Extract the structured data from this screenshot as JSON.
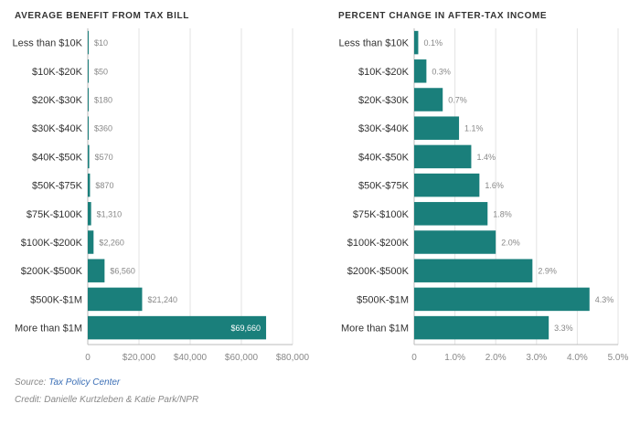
{
  "colors": {
    "bar": "#1a7f7b",
    "grid": "#e3e3e3",
    "axis": "#bbbbbb",
    "text": "#333333",
    "value_label": "#888888",
    "inside_label": "#ffffff",
    "link": "#3b6fb6"
  },
  "footer": {
    "source_prefix": "Source:",
    "source_link": "Tax Policy Center",
    "credit": "Credit: Danielle Kurtzleben & Katie Park/NPR"
  },
  "chart_data": [
    {
      "type": "bar",
      "orientation": "horizontal",
      "title": "AVERAGE BENEFIT FROM TAX BILL",
      "categories": [
        "Less than $10K",
        "$10K-$20K",
        "$20K-$30K",
        "$30K-$40K",
        "$40K-$50K",
        "$50K-$75K",
        "$75K-$100K",
        "$100K-$200K",
        "$200K-$500K",
        "$500K-$1M",
        "More than $1M"
      ],
      "values": [
        10,
        50,
        180,
        360,
        570,
        870,
        1310,
        2260,
        6560,
        21240,
        69660
      ],
      "value_labels": [
        "$10",
        "$50",
        "$180",
        "$360",
        "$570",
        "$870",
        "$1,310",
        "$2,260",
        "$6,560",
        "$21,240",
        "$69,660"
      ],
      "xlim": [
        0,
        80000
      ],
      "xticks": [
        0,
        20000,
        40000,
        60000,
        80000
      ],
      "xtick_labels": [
        "0",
        "$20,000",
        "$40,000",
        "$60,000",
        "$80,000"
      ],
      "grid": true
    },
    {
      "type": "bar",
      "orientation": "horizontal",
      "title": "PERCENT CHANGE IN AFTER-TAX INCOME",
      "categories": [
        "Less than $10K",
        "$10K-$20K",
        "$20K-$30K",
        "$30K-$40K",
        "$40K-$50K",
        "$50K-$75K",
        "$75K-$100K",
        "$100K-$200K",
        "$200K-$500K",
        "$500K-$1M",
        "More than $1M"
      ],
      "values": [
        0.1,
        0.3,
        0.7,
        1.1,
        1.4,
        1.6,
        1.8,
        2.0,
        2.9,
        4.3,
        3.3
      ],
      "value_labels": [
        "0.1%",
        "0.3%",
        "0.7%",
        "1.1%",
        "1.4%",
        "1.6%",
        "1.8%",
        "2.0%",
        "2.9%",
        "4.3%",
        "3.3%"
      ],
      "xlim": [
        0,
        5
      ],
      "xticks": [
        0,
        1,
        2,
        3,
        4,
        5
      ],
      "xtick_labels": [
        "0",
        "1.0%",
        "2.0%",
        "3.0%",
        "4.0%",
        "5.0%"
      ],
      "grid": true
    }
  ]
}
